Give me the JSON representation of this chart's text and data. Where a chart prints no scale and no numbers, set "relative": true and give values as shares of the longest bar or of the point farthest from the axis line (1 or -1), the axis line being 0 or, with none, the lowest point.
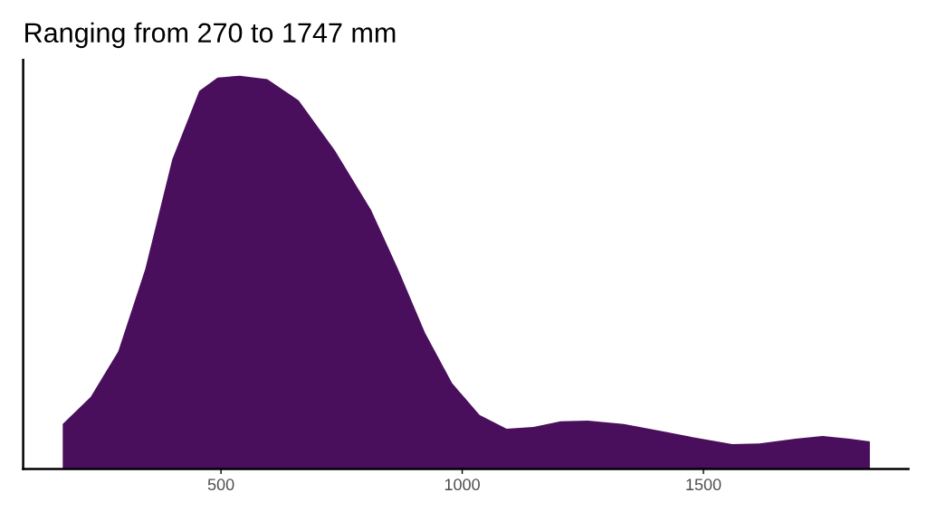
{
  "chart_data": {
    "type": "area",
    "title": "Ranging from 270 to 1747 mm",
    "relative": true,
    "x": [
      172,
      230,
      287,
      343,
      399,
      455,
      493,
      539,
      596,
      661,
      736,
      811,
      867,
      923,
      979,
      1036,
      1092,
      1148,
      1204,
      1260,
      1335,
      1410,
      1485,
      1560,
      1616,
      1691,
      1747,
      1803,
      1845
    ],
    "series": [
      {
        "color": "#4a0f5c",
        "values": [
          0.114,
          0.183,
          0.299,
          0.508,
          0.787,
          0.961,
          0.995,
          1.0,
          0.991,
          0.937,
          0.81,
          0.659,
          0.508,
          0.346,
          0.218,
          0.137,
          0.102,
          0.107,
          0.121,
          0.123,
          0.114,
          0.097,
          0.079,
          0.063,
          0.065,
          0.077,
          0.084,
          0.077,
          0.07
        ]
      }
    ],
    "xlim": [
      90,
      1925
    ],
    "xticks": [
      500,
      1000,
      1500
    ],
    "grid": false,
    "legend": false
  }
}
